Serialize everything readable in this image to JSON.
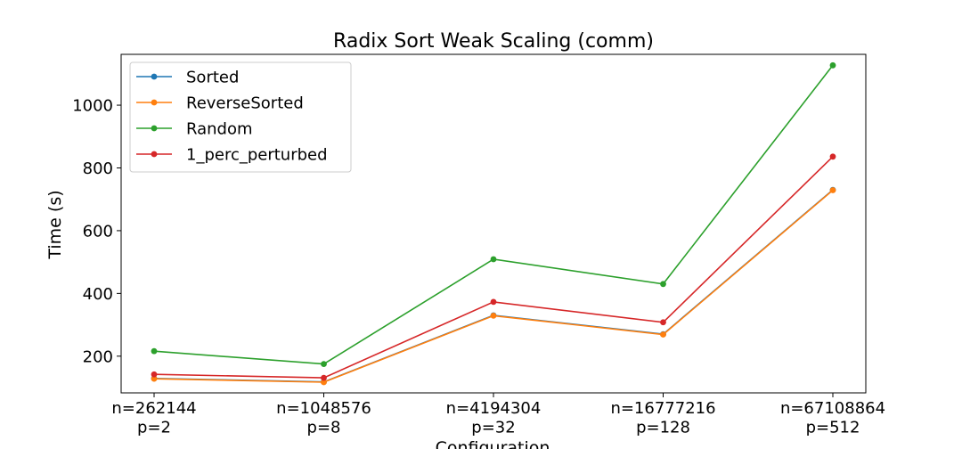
{
  "chart_data": {
    "type": "line",
    "title": "Radix Sort Weak Scaling (comm)",
    "xlabel": "Configuration",
    "ylabel": "Time (s)",
    "categories": [
      [
        "n=262144",
        "p=2"
      ],
      [
        "n=1048576",
        "p=8"
      ],
      [
        "n=4194304",
        "p=32"
      ],
      [
        "n=16777216",
        "p=128"
      ],
      [
        "n=67108864",
        "p=512"
      ]
    ],
    "yticks": [
      200,
      400,
      600,
      800,
      1000
    ],
    "ylim": [
      83,
      1162
    ],
    "grid": false,
    "legend_position": "top-left",
    "series": [
      {
        "name": "Sorted",
        "color": "#1f77b4",
        "values": [
          129,
          118,
          330,
          270,
          730
        ]
      },
      {
        "name": "ReverseSorted",
        "color": "#ff7f0e",
        "values": [
          128,
          117,
          329,
          269,
          729
        ]
      },
      {
        "name": "Random",
        "color": "#2ca02c",
        "values": [
          216,
          175,
          509,
          430,
          1127
        ]
      },
      {
        "name": "1_perc_perturbed",
        "color": "#d62728",
        "values": [
          142,
          131,
          373,
          308,
          836
        ]
      }
    ]
  }
}
